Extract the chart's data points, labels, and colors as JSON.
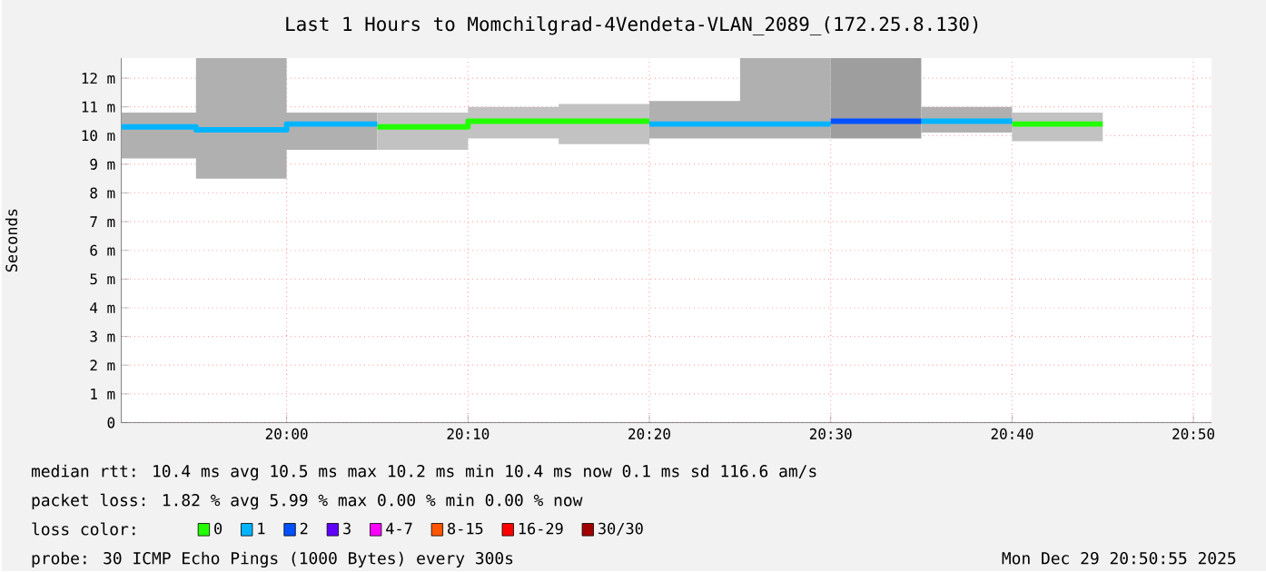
{
  "chart_data": {
    "type": "line",
    "title": "Last 1 Hours to Momchilgrad-4Vendeta-VLAN_2089_(172.25.8.130)",
    "ylabel": "Seconds",
    "legend_title": "loss color:",
    "xlim": [
      19.848,
      20.85
    ],
    "ylim": [
      0,
      12.7
    ],
    "xticks": [
      {
        "value": 20,
        "label": "20:00"
      },
      {
        "value": 20.1667,
        "label": "20:10"
      },
      {
        "value": 20.3333,
        "label": "20:20"
      },
      {
        "value": 20.5,
        "label": "20:30"
      },
      {
        "value": 20.6667,
        "label": "20:40"
      },
      {
        "value": 20.8333,
        "label": "20:50"
      }
    ],
    "yticks": [
      0,
      {
        "value": 1,
        "label": "1 m"
      },
      {
        "value": 2,
        "label": "2 m"
      },
      {
        "value": 3,
        "label": "3 m"
      },
      {
        "value": 4,
        "label": "4 m"
      },
      {
        "value": 5,
        "label": "5 m"
      },
      {
        "value": 6,
        "label": "6 m"
      },
      {
        "value": 7,
        "label": "7 m"
      },
      {
        "value": 8,
        "label": "8 m"
      },
      {
        "value": 9,
        "label": "9 m"
      },
      {
        "value": 10,
        "label": "10 m"
      },
      {
        "value": 11,
        "label": "11 m"
      },
      {
        "value": 12,
        "label": "12 m"
      }
    ],
    "grid": true,
    "legend": "bottom",
    "marker": "none",
    "line_style": "solid",
    "series": [
      {
        "name": "0",
        "color": "#22ff00",
        "x": [
          20.0833,
          20.1667,
          20.1667,
          20.25,
          20.25,
          20.3333,
          20.5,
          20.6667,
          20.75
        ],
        "values": [
          10.3,
          10.3,
          10.5,
          10.5,
          10.5,
          10.5,
          null,
          10.4,
          10.4
        ],
        "lower": [
          9.5,
          9.5,
          9.9,
          9.9,
          9.7,
          9.7,
          null,
          9.8,
          9.8
        ],
        "upper": [
          10.8,
          10.8,
          11.0,
          11.0,
          11.1,
          11.1,
          null,
          10.8,
          10.8
        ]
      },
      {
        "name": "1",
        "color": "#00b4ff",
        "x": [
          19.848,
          19.9167,
          19.9167,
          20,
          20,
          20.0833,
          20.2,
          20.3333,
          20.4167,
          20.4167,
          20.5,
          20.54,
          20.5833,
          20.6667
        ],
        "values": [
          10.3,
          10.3,
          10.2,
          10.2,
          10.4,
          10.4,
          null,
          10.4,
          10.4,
          10.4,
          10.4,
          null,
          10.5,
          10.5
        ],
        "lower": [
          9.2,
          9.2,
          8.5,
          8.5,
          9.5,
          9.5,
          null,
          9.9,
          9.9,
          9.9,
          9.9,
          null,
          10.1,
          10.1
        ],
        "upper": [
          10.8,
          10.8,
          12.7,
          12.7,
          10.8,
          10.8,
          null,
          11.2,
          11.2,
          12.7,
          12.7,
          null,
          11.0,
          11.0
        ]
      },
      {
        "name": "2",
        "color": "#0050ff",
        "x": [
          20.5,
          20.5833
        ],
        "values": [
          10.5,
          10.5
        ],
        "lower": [
          9.9,
          9.9
        ],
        "upper": [
          12.7,
          12.7
        ]
      },
      {
        "name": "3",
        "color": "#6000ff"
      },
      {
        "name": "4-7",
        "color": "#ff00ff"
      },
      {
        "name": "8-15",
        "color": "#ff5500"
      },
      {
        "name": "16-29",
        "color": "#ff0000"
      },
      {
        "name": "30/30",
        "color": "#a10000"
      }
    ],
    "annotations": [
      "median rtt:  10.4 ms avg  10.5 ms max  10.2 ms min  10.4 ms now  0.1 ms sd  116.6  am/s",
      "packet loss: 1.82 % avg  5.99 % max  0.00 % min  0.00 % now",
      "probe:  30 ICMP Echo Pings (1000 Bytes) every 300s",
      "Mon Dec 29 20:50:55 2025"
    ]
  }
}
